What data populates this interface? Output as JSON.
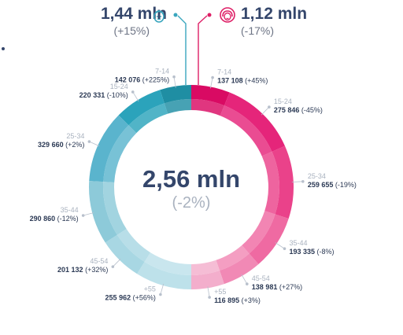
{
  "header": {
    "male": {
      "value": "1,44 mln",
      "change": "(+15%)",
      "icon": "male-face-icon",
      "color": "#3aa6be"
    },
    "female": {
      "value": "1,12 mln",
      "change": "(-17%)",
      "icon": "female-face-icon",
      "color": "#de1f66"
    }
  },
  "center": {
    "value": "2,56 mln",
    "change": "(-2%)"
  },
  "chart_data": {
    "type": "pie",
    "title": "",
    "total": "2,56 mln",
    "total_change": "(-2%)",
    "series": [
      {
        "name": "1,12 mln",
        "color": "#de1f66",
        "side": "right",
        "categories": [
          "7-14",
          "15-24",
          "25-34",
          "35-44",
          "45-54",
          "+55"
        ],
        "values": [
          137108,
          275846,
          259655,
          193335,
          138981,
          116895
        ],
        "value_labels": [
          "137 108",
          "275 846",
          "259 655",
          "193 335",
          "138 981",
          "116 895"
        ],
        "changes": [
          "(+45%)",
          "(-45%)",
          "(-19%)",
          "(-8%)",
          "(+27%)",
          "(+3%)"
        ],
        "colors": [
          "#d90a63",
          "#e5257a",
          "#ea428a",
          "#ef6aa2",
          "#f189b5",
          "#f3aecc"
        ]
      },
      {
        "name": "1,44 mln",
        "color": "#3aa6be",
        "side": "left",
        "categories": [
          "7-14",
          "15-24",
          "25-34",
          "35-44",
          "45-54",
          "+55"
        ],
        "values": [
          142076,
          220331,
          329660,
          290860,
          201132,
          255962
        ],
        "value_labels": [
          "142 076",
          "220 331",
          "329 660",
          "290 860",
          "201 132",
          "255 962"
        ],
        "changes": [
          "(+225%)",
          "(-10%)",
          "(+2%)",
          "(-12%)",
          "(+32%)",
          "(+56%)"
        ],
        "colors": [
          "#1f8ea3",
          "#2ba3bb",
          "#5ab4cd",
          "#8dcad9",
          "#a8d7e3",
          "#bde1ea"
        ]
      }
    ]
  }
}
